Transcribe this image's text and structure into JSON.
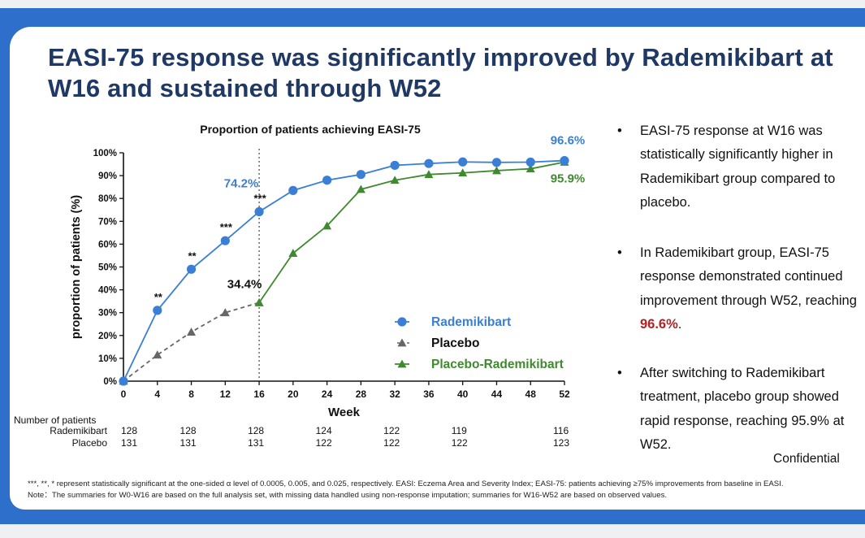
{
  "slide": {
    "title": "EASI-75 response was significantly improved by Rademikibart at W16 and sustained through W52",
    "bullets": [
      {
        "marker": "•",
        "text": "EASI-75 response at W16 was statistically significantly higher in Rademikibart group compared to placebo."
      },
      {
        "marker": "•",
        "text_before": "In Rademikibart group, EASI-75 response demonstrated continued improvement through W52, reaching ",
        "highlight": "96.6%",
        "text_after": "."
      },
      {
        "marker": "•",
        "text": "After switching to Rademikibart treatment, placebo group showed rapid response, reaching 95.9% at W52."
      }
    ],
    "confidential": "Confidential",
    "footnote_line1": "***, **, * represent statistically significant at the one-sided α level of 0.0005, 0.005, and 0.025, respectively. EASI: Eczema Area and Severity Index; EASI-75: patients achieving ≥75% improvements from baseline in EASI.",
    "footnote_line2": "Note：The summaries for W0-W16 are based on the full analysis set, with missing data handled using non-response imputation; summaries for W16-W52 are based on observed values."
  },
  "colors": {
    "frame": "#2d6fca",
    "title": "#1f3864",
    "rademikibart": "#3a7fd5",
    "placebo": "#666666",
    "placebo_rademikibart": "#3f8a2e",
    "highlight": "#b22323"
  },
  "chart_data": {
    "type": "line",
    "title": "Proportion of patients achieving EASI-75",
    "xlabel": "Week",
    "ylabel": "proportion of patients (%)",
    "x": [
      0,
      4,
      8,
      12,
      16,
      20,
      24,
      28,
      32,
      36,
      40,
      44,
      48,
      52
    ],
    "xlim": [
      0,
      52
    ],
    "ylim": [
      0,
      100
    ],
    "yticks": [
      0,
      10,
      20,
      30,
      40,
      50,
      60,
      70,
      80,
      90,
      100
    ],
    "ytick_labels": [
      "0%",
      "10%",
      "20%",
      "30%",
      "40%",
      "50%",
      "60%",
      "70%",
      "80%",
      "90%",
      "100%"
    ],
    "vline_week": 16,
    "series": [
      {
        "name": "Rademikibart",
        "marker": "circle",
        "line": "solid",
        "color": "#3a7fd5",
        "x": [
          0,
          4,
          8,
          12,
          16,
          20,
          24,
          28,
          32,
          36,
          40,
          44,
          48,
          52
        ],
        "values": [
          0,
          31,
          49,
          61.5,
          74.2,
          83.5,
          88,
          90.5,
          94.5,
          95.3,
          96,
          95.8,
          95.9,
          96.6
        ]
      },
      {
        "name": "Placebo",
        "marker": "triangle",
        "line": "dashed",
        "color": "#666666",
        "x": [
          0,
          4,
          8,
          12,
          16
        ],
        "values": [
          0,
          11.5,
          21.5,
          30,
          34.4
        ]
      },
      {
        "name": "Placebo-Rademikibart",
        "marker": "triangle",
        "line": "solid",
        "color": "#3f8a2e",
        "x": [
          16,
          20,
          24,
          28,
          32,
          36,
          40,
          44,
          48,
          52
        ],
        "values": [
          34.4,
          56,
          68,
          84,
          88,
          90.5,
          91.2,
          92.2,
          93,
          95.9
        ]
      }
    ],
    "significance": [
      {
        "week": 4,
        "value": 31,
        "label": "**"
      },
      {
        "week": 8,
        "value": 49,
        "label": "**"
      },
      {
        "week": 12,
        "value": 61.5,
        "label": "***"
      },
      {
        "week": 16,
        "value": 74.2,
        "label": "***"
      }
    ],
    "annotations": [
      {
        "label": "74.2%",
        "series": "Rademikibart",
        "week": 16,
        "value": 74.2
      },
      {
        "label": "34.4%",
        "series": "Placebo",
        "week": 16,
        "value": 34.4
      },
      {
        "label": "96.6%",
        "series": "Rademikibart",
        "week": 52,
        "value": 96.6
      },
      {
        "label": "95.9%",
        "series": "Placebo-Rademikibart",
        "week": 52,
        "value": 95.9
      }
    ],
    "legend": {
      "position": "bottom-right",
      "entries": [
        "Rademikibart",
        "Placebo",
        "Placebo-Rademikibart"
      ]
    },
    "patients_table": {
      "header": "Number of patients",
      "rows": [
        {
          "name": "Rademikibart",
          "counts": [
            {
              "week": 0,
              "n": "128"
            },
            {
              "week": 8,
              "n": "128"
            },
            {
              "week": 16,
              "n": "128"
            },
            {
              "week": 24,
              "n": "124"
            },
            {
              "week": 32,
              "n": "122"
            },
            {
              "week": 40,
              "n": "119"
            },
            {
              "week": 52,
              "n": "116"
            }
          ]
        },
        {
          "name": "Placebo",
          "counts": [
            {
              "week": 0,
              "n": "131"
            },
            {
              "week": 8,
              "n": "131"
            },
            {
              "week": 16,
              "n": "131"
            },
            {
              "week": 24,
              "n": "122"
            },
            {
              "week": 32,
              "n": "122"
            },
            {
              "week": 40,
              "n": "122"
            },
            {
              "week": 52,
              "n": "123"
            }
          ]
        }
      ]
    }
  }
}
